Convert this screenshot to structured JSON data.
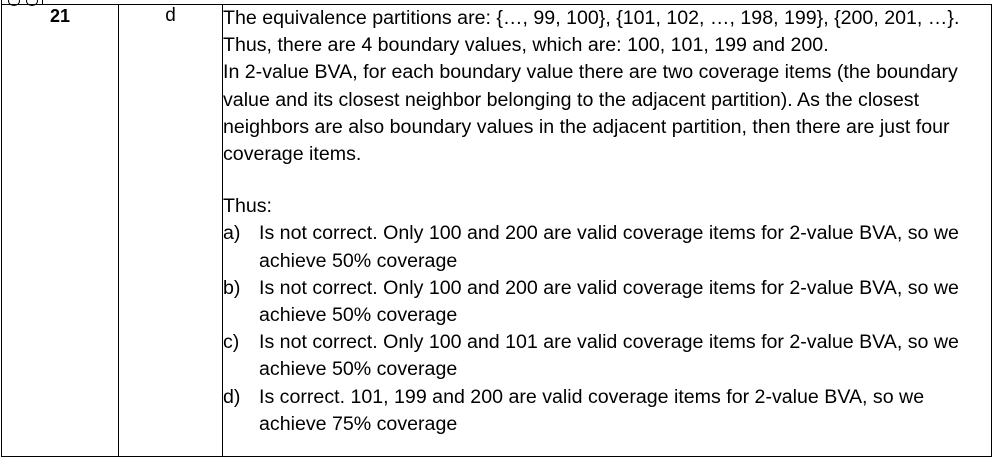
{
  "row": {
    "question_number": "21",
    "answer_letter": "d",
    "intro_paragraphs": [
      "The equivalence partitions are: {…, 99, 100}, {101, 102, …, 198, 199}, {200, 201, …}.",
      "Thus, there are 4 boundary values, which are: 100, 101, 199 and 200.",
      "In 2-value BVA, for each boundary value there are two coverage items (the boundary value and its closest neighbor belonging to the adjacent partition). As the closest neighbors are also boundary values in the adjacent partition, then there are just four coverage items."
    ],
    "thus_label": "Thus:",
    "options": [
      {
        "label": "a)",
        "text": "Is not correct. Only 100 and 200 are valid coverage items for 2-value BVA, so we achieve 50% coverage"
      },
      {
        "label": "b)",
        "text": "Is not correct. Only 100 and 200 are valid coverage items for 2-value BVA, so we achieve 50% coverage"
      },
      {
        "label": "c)",
        "text": "Is not correct. Only 100 and 101 are valid coverage items for 2-value BVA, so we achieve 50% coverage"
      },
      {
        "label": "d)",
        "text": "Is correct. 101, 199 and 200 are valid coverage items for 2-value BVA, so we achieve 75% coverage"
      }
    ]
  }
}
